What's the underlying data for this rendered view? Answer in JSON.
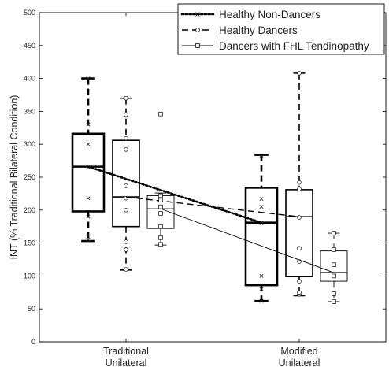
{
  "chart_data": {
    "type": "box",
    "ylabel": "INT (% Traditional Bilateral Condition)",
    "ylim": [
      0,
      500
    ],
    "yticks": [
      0,
      50,
      100,
      150,
      200,
      250,
      300,
      350,
      400,
      450,
      500
    ],
    "categories": [
      "Traditional\nUnilateral",
      "Modified\nUnilateral"
    ],
    "grid": false,
    "legend_position": "top-right",
    "series": [
      {
        "name": "Healthy Non-Dancers",
        "line_style": "dotted",
        "marker": "x",
        "box_stroke": "heavy",
        "boxes": [
          {
            "whisker_low": 153,
            "q1": 198,
            "median": 266,
            "q3": 316,
            "whisker_high": 400,
            "points": [
              155,
              190,
              218,
              265,
              300,
              330,
              400
            ]
          },
          {
            "whisker_low": 62,
            "q1": 86,
            "median": 181,
            "q3": 234,
            "whisker_high": 284,
            "points": [
              62,
              80,
              100,
              180,
              205,
              217,
              283
            ]
          }
        ],
        "trend": [
          266,
          181
        ]
      },
      {
        "name": "Healthy Dancers",
        "line_style": "dashed",
        "marker": "o",
        "box_stroke": "medium",
        "boxes": [
          {
            "whisker_low": 109,
            "q1": 175,
            "median": 220,
            "q3": 306,
            "whisker_high": 370,
            "points": [
              110,
              140,
              152,
              200,
              218,
              237,
              292,
              309,
              345,
              370
            ]
          },
          {
            "whisker_low": 70,
            "q1": 99,
            "median": 190,
            "q3": 231,
            "whisker_high": 408,
            "points": [
              72,
              75,
              92,
              122,
              142,
              189,
              232,
              242,
              408
            ]
          }
        ],
        "trend": [
          220,
          190
        ]
      },
      {
        "name": "Dancers with FHL Tendinopathy",
        "line_style": "solid",
        "marker": "square",
        "box_stroke": "thin",
        "boxes": [
          {
            "whisker_low": 147,
            "q1": 172,
            "median": 202,
            "q3": 222,
            "whisker_high": 226,
            "points": [
              148,
              158,
              175,
              195,
              205,
              215,
              222,
              346
            ]
          },
          {
            "whisker_low": 61,
            "q1": 92,
            "median": 105,
            "q3": 138,
            "whisker_high": 165,
            "points": [
              61,
              73,
              100,
              117,
              140,
              165
            ]
          }
        ],
        "trend": [
          202,
          105
        ]
      }
    ]
  }
}
